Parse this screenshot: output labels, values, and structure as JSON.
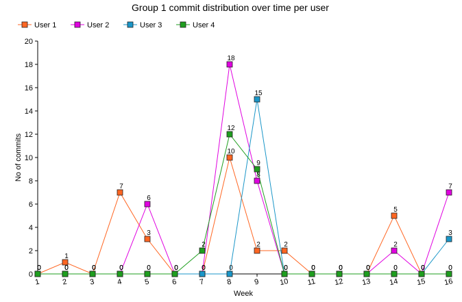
{
  "chart_data": {
    "type": "line",
    "title": "Group 1 commit distribution over time per user",
    "xlabel": "Week",
    "ylabel": "No of commits",
    "x": [
      1,
      2,
      3,
      4,
      5,
      6,
      7,
      8,
      9,
      10,
      11,
      12,
      13,
      14,
      15,
      16
    ],
    "ylim": [
      0,
      20
    ],
    "yticks": [
      0,
      2,
      4,
      6,
      8,
      10,
      12,
      14,
      16,
      18,
      20
    ],
    "legend_position": "top-left",
    "grid": false,
    "series": [
      {
        "name": "User 1",
        "color": "#ff6622",
        "values": [
          0,
          1,
          0,
          7,
          3,
          0,
          0,
          10,
          2,
          2,
          0,
          0,
          0,
          5,
          0,
          0
        ]
      },
      {
        "name": "User 2",
        "color": "#e000e0",
        "values": [
          0,
          0,
          0,
          0,
          6,
          0,
          0,
          18,
          8,
          0,
          0,
          0,
          0,
          2,
          0,
          7
        ]
      },
      {
        "name": "User 3",
        "color": "#1a96c8",
        "values": [
          0,
          0,
          0,
          0,
          0,
          0,
          0,
          0,
          15,
          0,
          0,
          0,
          0,
          0,
          0,
          3
        ]
      },
      {
        "name": "User 4",
        "color": "#1e9e1e",
        "values": [
          0,
          0,
          0,
          0,
          0,
          0,
          2,
          12,
          9,
          0,
          0,
          0,
          0,
          0,
          0,
          0
        ]
      }
    ]
  }
}
